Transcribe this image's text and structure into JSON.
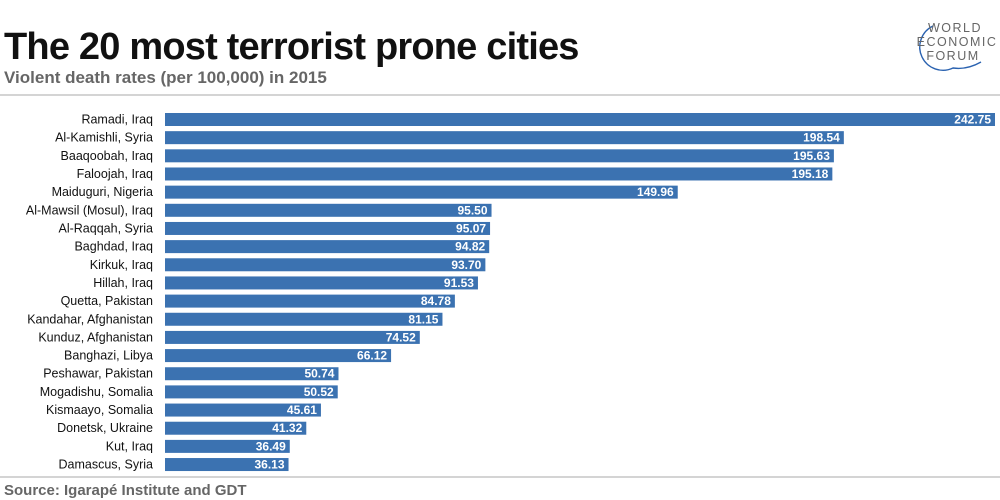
{
  "header": {
    "title": "The 20 most terrorist prone cities",
    "subtitle": "Violent death rates (per 100,000) in 2015",
    "logo_text": [
      "WORLD",
      "ECONOMIC",
      "FORUM"
    ]
  },
  "footer": {
    "source": "Source: Igarapé Institute and GDT"
  },
  "colors": {
    "bar": "#3b72b1",
    "divider": "#aaaaaa"
  },
  "chart_data": {
    "type": "bar",
    "orientation": "horizontal",
    "title": "The 20 most terrorist prone cities",
    "subtitle": "Violent death rates (per 100,000) in 2015",
    "categories": [
      "Ramadi, Iraq",
      "Al-Kamishli, Syria",
      "Baaqoobah, Iraq",
      "Faloojah, Iraq",
      "Maiduguri, Nigeria",
      "Al-Mawsil (Mosul), Iraq",
      "Al-Raqqah, Syria",
      "Baghdad, Iraq",
      "Kirkuk, Iraq",
      "Hillah, Iraq",
      "Quetta, Pakistan",
      "Kandahar, Afghanistan",
      "Kunduz, Afghanistan",
      "Banghazi, Libya",
      "Peshawar, Pakistan",
      "Mogadishu, Somalia",
      "Kismaayo, Somalia",
      "Donetsk, Ukraine",
      "Kut, Iraq",
      "Damascus, Syria"
    ],
    "values": [
      242.75,
      198.54,
      195.63,
      195.18,
      149.96,
      95.5,
      95.07,
      94.82,
      93.7,
      91.53,
      84.78,
      81.15,
      74.52,
      66.12,
      50.74,
      50.52,
      45.61,
      41.32,
      36.49,
      36.13
    ],
    "value_labels": [
      "242.75",
      "198.54",
      "195.63",
      "195.18",
      "149.96",
      "95.50",
      "95.07",
      "94.82",
      "93.70",
      "91.53",
      "84.78",
      "81.15",
      "74.52",
      "66.12",
      "50.74",
      "50.52",
      "45.61",
      "41.32",
      "36.49",
      "36.13"
    ],
    "xlim": [
      0,
      242.75
    ],
    "grid": false,
    "legend": "none"
  }
}
